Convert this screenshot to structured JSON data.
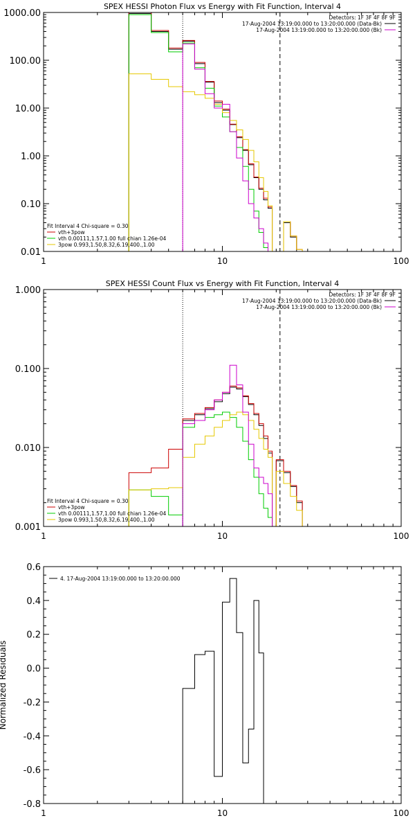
{
  "chart_data": [
    {
      "type": "line",
      "step": true,
      "title": "SPEX HESSI Photon Flux vs Energy with Fit Function, Interval 4",
      "xlabel": "",
      "ylabel": "",
      "xscale": "log",
      "yscale": "log",
      "xlim": [
        1,
        100
      ],
      "ylim": [
        0.01,
        1000
      ],
      "xticks": [
        1,
        10,
        100
      ],
      "xticklabels": [
        "1",
        "10",
        "100"
      ],
      "yticks": [
        0.01,
        0.1,
        1,
        10,
        100,
        1000
      ],
      "yticklabels": [
        "0.01",
        "0.10",
        "1.00",
        "10.00",
        "100.00",
        "1000.00"
      ],
      "vlines": [
        {
          "x": 6,
          "style": "dotted"
        },
        {
          "x": 21,
          "style": "dashed"
        }
      ],
      "info_lines": [
        "Detectors: 1F 3F 4F 8F 9F",
        "17-Aug-2004 13:19:00.000 to 13:20:00.000 (Data-Bk)",
        "17-Aug-2004 13:19:00.000 to 13:20:00.000 (Bk)"
      ],
      "legend_header": "Fit Interval 4    Chi-square = 0.30",
      "legend_entries": [
        {
          "label": "vth+3pow",
          "color": "#cc0000"
        },
        {
          "label": "vth 0.00111,1.57,1.00  full chian 1.26e-04",
          "color": "#00cc00"
        },
        {
          "label": "3pow 0.993,1.50,8.32,6.19,400.,1.00",
          "color": "#e6c800"
        }
      ],
      "edges": [
        3,
        4,
        5,
        6,
        7,
        8,
        9,
        10,
        11,
        12,
        13,
        14,
        15,
        16,
        17,
        18,
        19,
        20,
        22,
        24,
        26,
        28
      ],
      "series": [
        {
          "color": "#000000",
          "values": [
            950,
            400,
            170,
            250,
            85,
            35,
            13,
            9,
            4.5,
            2.4,
            1.3,
            0.65,
            0.35,
            0.2,
            0.12,
            0.08,
            null,
            null,
            0.04,
            0.02,
            0.01
          ]
        },
        {
          "color": "#cc0000",
          "values": [
            1000,
            420,
            180,
            260,
            90,
            36,
            14,
            9.5,
            4.6,
            2.5,
            1.35,
            0.68,
            0.36,
            0.21,
            0.13,
            0.085,
            null,
            null,
            0.042,
            0.021,
            0.011
          ]
        },
        {
          "color": "#00cc00",
          "values": [
            900,
            380,
            150,
            230,
            70,
            26,
            11,
            6.5,
            3.2,
            1.5,
            0.6,
            0.2,
            0.07,
            0.025,
            0.012,
            null,
            null,
            null,
            null,
            null,
            null
          ]
        },
        {
          "color": "#e6c800",
          "values": [
            52,
            40,
            28,
            22,
            19,
            16,
            12,
            8,
            5.5,
            3.5,
            2.2,
            1.3,
            0.75,
            0.35,
            0.18,
            0.09,
            null,
            null,
            0.042,
            0.021,
            0.011
          ]
        },
        {
          "color": "#cc00cc",
          "values": [
            null,
            null,
            null,
            220,
            65,
            20,
            10,
            12,
            3.2,
            0.9,
            0.3,
            0.1,
            0.05,
            0.03,
            0.015,
            null,
            null,
            null,
            null,
            null,
            null
          ]
        }
      ]
    },
    {
      "type": "line",
      "step": true,
      "title": "SPEX HESSI Count Flux vs Energy with Fit Function, Interval 4",
      "xlabel": "",
      "ylabel": "",
      "xscale": "log",
      "yscale": "log",
      "xlim": [
        1,
        100
      ],
      "ylim": [
        0.001,
        1
      ],
      "xticks": [
        1,
        10,
        100
      ],
      "xticklabels": [
        "1",
        "10",
        "100"
      ],
      "yticks": [
        0.001,
        0.01,
        0.1,
        1
      ],
      "yticklabels": [
        "0.001",
        "0.010",
        "0.100",
        "1.000"
      ],
      "vlines": [
        {
          "x": 6,
          "style": "dotted"
        },
        {
          "x": 21,
          "style": "dashed"
        }
      ],
      "info_lines": [
        "Detectors: 1F 3F 4F 8F 9F",
        "17-Aug-2004 13:19:00.000 to 13:20:00.000 (Data-Bk)",
        "17-Aug-2004 13:19:00.000 to 13:20:00.000 (Bk)"
      ],
      "legend_header": "Fit Interval 4    Chi-square = 0.30",
      "legend_entries": [
        {
          "label": "vth+3pow",
          "color": "#cc0000"
        },
        {
          "label": "vth 0.00111,1.57,1.00  full chian 1.26e-04",
          "color": "#00cc00"
        },
        {
          "label": "3pow 0.993,1.50,8.32,6.19,400.,1.00",
          "color": "#e6c800"
        }
      ],
      "edges": [
        3,
        4,
        5,
        6,
        7,
        8,
        9,
        10,
        11,
        12,
        13,
        14,
        15,
        16,
        17,
        18,
        19,
        20,
        22,
        24,
        26,
        28
      ],
      "series": [
        {
          "color": "#000000",
          "values": [
            null,
            null,
            null,
            0.022,
            0.026,
            0.031,
            0.038,
            0.048,
            0.058,
            0.055,
            0.044,
            0.035,
            0.026,
            0.019,
            0.013,
            0.0085,
            null,
            0.0068,
            0.0048,
            0.0032,
            0.002
          ]
        },
        {
          "color": "#cc0000",
          "values": [
            0.0048,
            0.0055,
            0.0095,
            0.023,
            0.027,
            0.032,
            0.04,
            0.05,
            0.06,
            0.057,
            0.045,
            0.036,
            0.027,
            0.02,
            0.014,
            0.009,
            null,
            0.007,
            0.005,
            0.0033,
            0.0021
          ]
        },
        {
          "color": "#00cc00",
          "values": [
            0.0029,
            0.0024,
            0.0014,
            0.018,
            0.022,
            0.024,
            0.026,
            0.028,
            0.024,
            0.018,
            0.012,
            0.007,
            0.0042,
            0.0026,
            0.0017,
            0.0013,
            null,
            null,
            null,
            null,
            null
          ]
        },
        {
          "color": "#e6c800",
          "values": [
            0.0029,
            0.003,
            0.0031,
            0.0075,
            0.011,
            0.014,
            0.018,
            0.022,
            0.026,
            0.028,
            0.026,
            0.022,
            0.017,
            0.013,
            0.0095,
            0.0075,
            null,
            0.005,
            0.0035,
            0.0024,
            0.0016
          ]
        },
        {
          "color": "#cc00cc",
          "values": [
            null,
            null,
            null,
            0.02,
            0.022,
            0.03,
            0.04,
            0.05,
            0.11,
            0.062,
            0.028,
            0.011,
            0.0055,
            0.0042,
            0.0035,
            0.0026,
            null,
            null,
            null,
            null,
            null
          ]
        }
      ]
    },
    {
      "type": "line",
      "step": true,
      "title": "",
      "xlabel": "",
      "ylabel": "Normalized Residuals",
      "xscale": "log",
      "yscale": "linear",
      "xlim": [
        1,
        100
      ],
      "ylim": [
        -0.8,
        0.6
      ],
      "xticks": [
        1,
        10,
        100
      ],
      "xticklabels": [
        "1",
        "10",
        "100"
      ],
      "yticks": [
        -0.8,
        -0.6,
        -0.4,
        -0.2,
        0.0,
        0.2,
        0.4,
        0.6
      ],
      "yticklabels": [
        "-0.8",
        "-0.6",
        "-0.4",
        "-0.2",
        "0.0",
        "0.2",
        "0.4",
        "0.6"
      ],
      "legend_entries": [
        {
          "label": "4. 17-Aug-2004 13:19:00.000 to 13:20:00.000",
          "color": "#000000"
        }
      ],
      "edges": [
        6,
        7,
        8,
        9,
        10,
        11,
        12,
        13,
        14,
        15,
        16,
        17,
        18,
        19,
        20
      ],
      "series": [
        {
          "color": "#000000",
          "values": [
            -0.12,
            0.08,
            0.1,
            -0.64,
            0.39,
            0.53,
            0.21,
            -0.56,
            -0.36,
            0.4,
            0.09,
            null,
            null,
            null
          ]
        }
      ]
    }
  ]
}
